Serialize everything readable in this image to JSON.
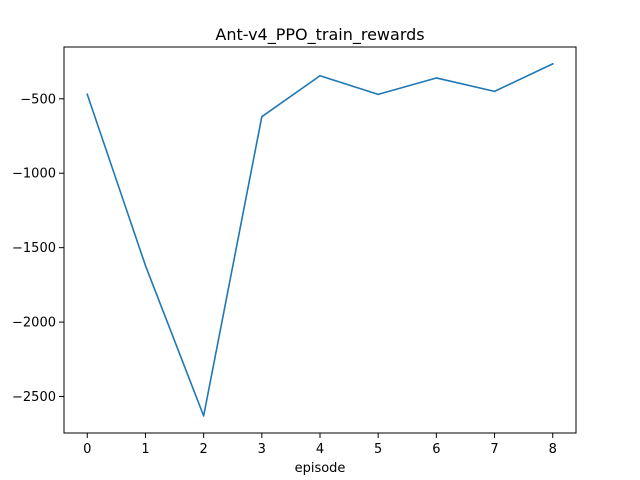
{
  "chart_data": {
    "type": "line",
    "title": "Ant-v4_PPO_train_rewards",
    "xlabel": "episode",
    "ylabel": "",
    "x": [
      0,
      1,
      2,
      3,
      4,
      5,
      6,
      7,
      8
    ],
    "series": [
      {
        "values": [
          -470,
          -1620,
          -2630,
          -620,
          -345,
          -470,
          -360,
          -450,
          -265
        ],
        "color": "#1f77b4"
      }
    ],
    "xticks": [
      "0",
      "1",
      "2",
      "3",
      "4",
      "5",
      "6",
      "7",
      "8"
    ],
    "yticks": [
      "−2500",
      "−2000",
      "−1500",
      "−1000",
      "−500"
    ],
    "ytick_values": [
      -2500,
      -2000,
      -1500,
      -1000,
      -500
    ],
    "xlim": [
      -0.4,
      8.4
    ],
    "ylim": [
      -2745,
      -152
    ],
    "grid": false,
    "legend": "none"
  }
}
